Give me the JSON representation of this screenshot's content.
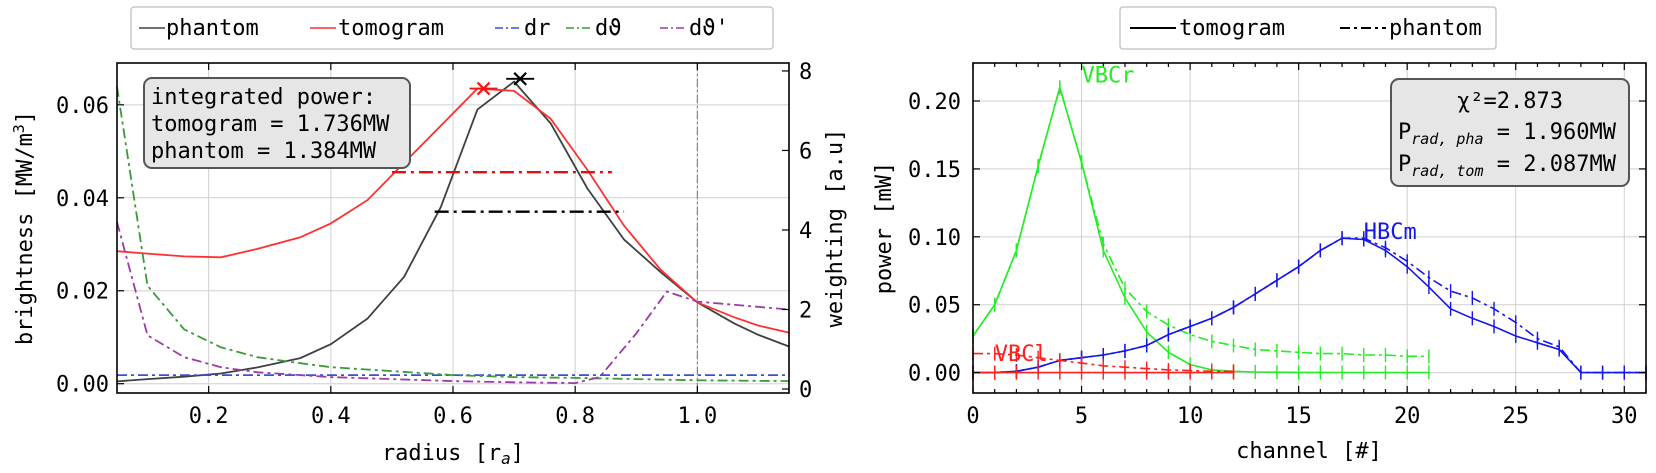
{
  "chart_data": [
    {
      "type": "line",
      "xlabel": "radius [r",
      "xlabel_sub": "a",
      "xlabel_end": "]",
      "ylabel": "brightness [MW/m",
      "ylabel_sup": "3",
      "ylabel_end": "]",
      "y2label": "weighting [a.u]",
      "xlim": [
        0.05,
        1.15
      ],
      "ylim": [
        -0.002,
        0.069
      ],
      "y2lim": [
        -0.1,
        8.2
      ],
      "xticks": [
        0.2,
        0.4,
        0.6,
        0.8,
        1.0
      ],
      "xtick_labels": [
        "0.2",
        "0.4",
        "0.6",
        "0.8",
        "1.0"
      ],
      "yticks": [
        0.0,
        0.02,
        0.04,
        0.06
      ],
      "ytick_labels": [
        "0.00",
        "0.02",
        "0.04",
        "0.06"
      ],
      "y2ticks": [
        0,
        2,
        4,
        6,
        8
      ],
      "y2tick_labels": [
        "0",
        "2",
        "4",
        "6",
        "8"
      ],
      "grid": true,
      "legend_position": "top (outside)",
      "legend": [
        {
          "label": "phantom",
          "color": "#404040",
          "dash": "solid"
        },
        {
          "label": "tomogram",
          "color": "#ff3030",
          "dash": "solid"
        },
        {
          "label": "dr",
          "color": "#3a4fd8",
          "dash": "dashdot"
        },
        {
          "label": "dϑ",
          "color": "#3a9a3a",
          "dash": "dashdot"
        },
        {
          "label": "dϑ'",
          "color": "#9a3ca6",
          "dash": "dashdot"
        }
      ],
      "annotation": {
        "lines": [
          "integrated power:",
          "tomogram = 1.736MW",
          "phantom = 1.384MW"
        ]
      },
      "vline_x": 1.0,
      "series": [
        {
          "name": "phantom",
          "color": "#404040",
          "dash": "solid",
          "axis": "left",
          "x": [
            0.05,
            0.1,
            0.16,
            0.22,
            0.28,
            0.35,
            0.4,
            0.46,
            0.52,
            0.58,
            0.64,
            0.7,
            0.76,
            0.82,
            0.88,
            0.94,
            1.0,
            1.06,
            1.1,
            1.15
          ],
          "y": [
            0.0005,
            0.001,
            0.0015,
            0.0022,
            0.0035,
            0.0055,
            0.0085,
            0.014,
            0.023,
            0.038,
            0.059,
            0.065,
            0.056,
            0.042,
            0.031,
            0.024,
            0.0175,
            0.013,
            0.0105,
            0.008
          ]
        },
        {
          "name": "tomogram",
          "color": "#ff3030",
          "dash": "solid",
          "axis": "left",
          "x": [
            0.05,
            0.1,
            0.16,
            0.22,
            0.28,
            0.35,
            0.4,
            0.46,
            0.52,
            0.58,
            0.64,
            0.7,
            0.76,
            0.82,
            0.88,
            0.94,
            1.0,
            1.06,
            1.1,
            1.15
          ],
          "y": [
            0.0285,
            0.028,
            0.0274,
            0.0272,
            0.029,
            0.0315,
            0.0345,
            0.0395,
            0.0475,
            0.0555,
            0.0635,
            0.063,
            0.057,
            0.046,
            0.034,
            0.0245,
            0.0175,
            0.0143,
            0.0125,
            0.011
          ]
        },
        {
          "name": "dr",
          "color": "#3a4fd8",
          "dash": "dashdot",
          "axis": "right",
          "x": [
            0.05,
            1.15
          ],
          "y": [
            0.35,
            0.35
          ]
        },
        {
          "name": "dϑ",
          "color": "#3a9a3a",
          "dash": "dashdot",
          "axis": "right",
          "x": [
            0.05,
            0.1,
            0.16,
            0.22,
            0.28,
            0.35,
            0.4,
            0.5,
            0.6,
            0.7,
            0.8,
            0.9,
            1.0,
            1.15
          ],
          "y": [
            7.6,
            2.6,
            1.5,
            1.05,
            0.8,
            0.65,
            0.55,
            0.45,
            0.35,
            0.3,
            0.28,
            0.25,
            0.22,
            0.2
          ]
        },
        {
          "name": "dϑ'",
          "color": "#9a3ca6",
          "dash": "dashdot",
          "axis": "right",
          "x": [
            0.05,
            0.1,
            0.16,
            0.22,
            0.28,
            0.35,
            0.4,
            0.5,
            0.6,
            0.7,
            0.8,
            0.84,
            0.9,
            0.95,
            1.0,
            1.15
          ],
          "y": [
            4.2,
            1.35,
            0.8,
            0.55,
            0.42,
            0.35,
            0.3,
            0.25,
            0.2,
            0.17,
            0.15,
            0.3,
            1.4,
            2.45,
            2.2,
            2.0
          ]
        }
      ],
      "peak_markers": [
        {
          "x": 0.65,
          "y": 0.0635,
          "color": "#ff1010"
        },
        {
          "x": 0.71,
          "y": 0.0656,
          "color": "#000000"
        }
      ],
      "width_bars": [
        {
          "x0": 0.5,
          "x1": 0.86,
          "y": 0.0455,
          "color": "#e01010"
        },
        {
          "x0": 0.57,
          "x1": 0.88,
          "y": 0.037,
          "color": "#000000"
        }
      ]
    },
    {
      "type": "line",
      "xlabel": "channel [#]",
      "ylabel": "power [mW]",
      "xlim": [
        0,
        31
      ],
      "ylim": [
        -0.015,
        0.228
      ],
      "xticks": [
        0,
        5,
        10,
        15,
        20,
        25,
        30
      ],
      "xtick_labels": [
        "0",
        "5",
        "10",
        "15",
        "20",
        "25",
        "30"
      ],
      "yticks": [
        0.0,
        0.05,
        0.1,
        0.15,
        0.2
      ],
      "ytick_labels": [
        "0.00",
        "0.05",
        "0.10",
        "0.15",
        "0.20"
      ],
      "grid": true,
      "legend_position": "top (outside)",
      "legend": [
        {
          "label": "tomogram",
          "color": "#000000",
          "dash": "solid"
        },
        {
          "label": "phantom",
          "color": "#000000",
          "dash": "dashdot"
        }
      ],
      "annotation": {
        "chi2": "χ²=2.873",
        "prad_pha_label": "P",
        "prad_pha_sub": "rad, pha",
        "prad_pha_value": " = 1.960MW",
        "prad_tom_label": "P",
        "prad_tom_sub": "rad, tom",
        "prad_tom_value": " = 2.087MW"
      },
      "camera_labels": [
        {
          "text": "VBCr",
          "x": 5,
          "y": 0.215,
          "color": "#22ee22"
        },
        {
          "text": "HBCm",
          "x": 18,
          "y": 0.1,
          "color": "#1515ee"
        },
        {
          "text": "VBCl",
          "x": 1,
          "y": 0.01,
          "color": "#ff2020"
        }
      ],
      "series": [
        {
          "name": "VBCr tomogram",
          "color": "#22ee22",
          "dash": "solid",
          "x": [
            0,
            1,
            2,
            3,
            4,
            5,
            6,
            7,
            8,
            9,
            10,
            11,
            12,
            13,
            14,
            15,
            16,
            17,
            18,
            19,
            20,
            21
          ],
          "y": [
            0.027,
            0.05,
            0.09,
            0.152,
            0.21,
            0.155,
            0.09,
            0.055,
            0.03,
            0.015,
            0.006,
            0.002,
            0.001,
            0.0005,
            0.0003,
            0.0002,
            0.0002,
            0.0001,
            0.0001,
            0.0001,
            0.0001,
            0.0001
          ]
        },
        {
          "name": "VBCr phantom",
          "color": "#22ee22",
          "dash": "dashdot",
          "x": [
            0,
            1,
            2,
            3,
            4,
            5,
            6,
            7,
            8,
            9,
            10,
            11,
            12,
            13,
            14,
            15,
            16,
            17,
            18,
            19,
            20,
            21
          ],
          "y": [
            0.027,
            0.05,
            0.09,
            0.152,
            0.21,
            0.155,
            0.095,
            0.062,
            0.045,
            0.035,
            0.028,
            0.023,
            0.02,
            0.017,
            0.016,
            0.015,
            0.014,
            0.014,
            0.013,
            0.013,
            0.012,
            0.012
          ]
        },
        {
          "name": "HBCm tomogram",
          "color": "#1515ee",
          "dash": "solid",
          "x": [
            0,
            1,
            2,
            3,
            4,
            5,
            6,
            7,
            8,
            9,
            10,
            11,
            12,
            13,
            14,
            15,
            16,
            17,
            18,
            19,
            20,
            21,
            22,
            23,
            24,
            25,
            26,
            27,
            28,
            29,
            30,
            31
          ],
          "y": [
            0.0,
            0.0,
            0.001,
            0.004,
            0.009,
            0.011,
            0.013,
            0.016,
            0.02,
            0.028,
            0.034,
            0.04,
            0.048,
            0.058,
            0.068,
            0.078,
            0.09,
            0.099,
            0.098,
            0.09,
            0.078,
            0.063,
            0.047,
            0.04,
            0.034,
            0.027,
            0.022,
            0.017,
            0.0,
            0.0,
            0.0,
            0.0
          ]
        },
        {
          "name": "HBCm phantom",
          "color": "#1515ee",
          "dash": "dashdot",
          "x": [
            0,
            1,
            2,
            3,
            4,
            5,
            6,
            7,
            8,
            9,
            10,
            11,
            12,
            13,
            14,
            15,
            16,
            17,
            18,
            19,
            20,
            21,
            22,
            23,
            24,
            25,
            26,
            27,
            28,
            29,
            30,
            31
          ],
          "y": [
            0.0,
            0.0,
            0.001,
            0.004,
            0.009,
            0.011,
            0.013,
            0.016,
            0.02,
            0.028,
            0.034,
            0.04,
            0.048,
            0.058,
            0.068,
            0.078,
            0.09,
            0.099,
            0.099,
            0.092,
            0.082,
            0.07,
            0.06,
            0.055,
            0.047,
            0.037,
            0.025,
            0.019,
            0.0,
            0.0,
            0.0,
            0.0
          ]
        },
        {
          "name": "VBCl tomogram",
          "color": "#ff2020",
          "dash": "solid",
          "x": [
            0,
            1,
            2,
            3,
            4,
            5,
            6,
            7,
            8,
            9,
            10,
            11,
            12
          ],
          "y": [
            0.0,
            0.0,
            0.0,
            0.0,
            0.0,
            0.0,
            0.0,
            0.0,
            0.0,
            0.0,
            0.0,
            0.0,
            0.0
          ]
        },
        {
          "name": "VBCl phantom",
          "color": "#ff2020",
          "dash": "dashdot",
          "x": [
            0,
            1,
            2,
            3,
            4,
            5,
            6,
            7,
            8,
            9,
            10,
            11,
            12
          ],
          "y": [
            0.014,
            0.014,
            0.013,
            0.011,
            0.009,
            0.007,
            0.005,
            0.004,
            0.003,
            0.002,
            0.0015,
            0.001,
            0.001
          ]
        }
      ]
    }
  ]
}
